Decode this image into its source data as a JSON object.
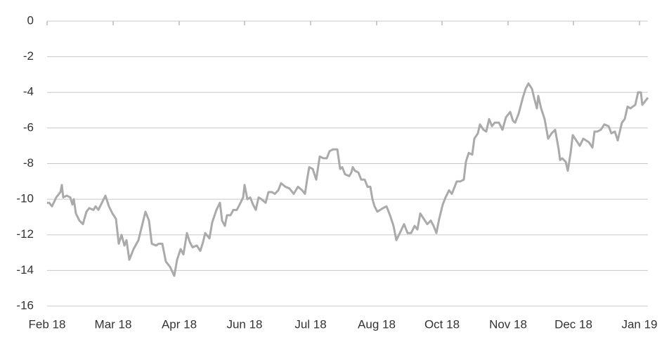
{
  "chart_data": {
    "type": "line",
    "x": [
      0,
      3,
      7,
      13,
      19,
      21,
      23,
      28,
      33,
      36,
      38,
      41,
      46,
      51,
      56,
      60,
      66,
      69,
      73,
      78,
      83,
      88,
      93,
      98,
      102,
      106,
      110,
      113,
      117,
      123,
      130,
      135,
      140,
      145,
      149,
      155,
      159,
      164,
      169,
      175,
      181,
      185,
      190,
      194,
      199,
      203,
      207,
      213,
      218,
      222,
      225,
      231,
      235,
      241,
      246,
      249,
      253,
      256,
      261,
      265,
      270,
      274,
      279,
      281,
      285,
      289,
      293,
      297,
      301,
      305,
      311,
      315,
      320,
      324,
      329,
      333,
      339,
      345,
      351,
      357,
      363,
      367,
      370,
      373,
      378,
      383,
      388,
      393,
      398,
      402,
      407,
      413,
      417,
      420,
      424,
      430,
      433,
      435,
      438,
      443,
      447,
      452,
      456,
      460,
      463,
      466,
      470,
      478,
      483,
      488,
      493,
      497,
      502,
      508,
      513,
      518,
      523,
      527,
      531,
      536,
      541,
      546,
      550,
      554,
      558,
      563,
      567,
      572,
      576,
      583,
      588,
      593,
      596,
      600,
      605,
      608,
      613,
      616,
      621,
      625,
      629,
      633,
      637,
      643,
      648,
      653,
      659,
      663,
      666,
      671,
      677,
      681,
      685,
      690,
      693,
      697,
      699,
      703,
      708,
      713,
      718,
      723,
      728,
      730,
      733,
      738,
      741,
      745,
      748,
      753,
      758,
      763,
      771,
      776,
      779,
      783,
      788,
      793,
      799,
      803,
      808,
      812,
      818,
      822,
      826,
      830,
      837,
      841,
      845,
      847,
      851,
      855
    ],
    "series": [
      {
        "color": "#aaaaaa",
        "values": [
          -10.2,
          -10.2,
          -10.4,
          -9.9,
          -9.6,
          -9.2,
          -9.9,
          -9.8,
          -9.9,
          -10.3,
          -10.0,
          -10.8,
          -11.2,
          -11.4,
          -10.7,
          -10.5,
          -10.6,
          -10.4,
          -10.6,
          -10.2,
          -9.8,
          -10.4,
          -10.8,
          -11.1,
          -12.5,
          -12.0,
          -12.6,
          -12.3,
          -13.4,
          -12.8,
          -12.3,
          -11.5,
          -10.7,
          -11.2,
          -12.5,
          -12.6,
          -12.5,
          -12.5,
          -13.5,
          -13.8,
          -14.3,
          -13.4,
          -12.8,
          -13.1,
          -11.9,
          -12.4,
          -12.7,
          -12.6,
          -12.9,
          -12.4,
          -11.9,
          -12.2,
          -11.3,
          -10.6,
          -10.2,
          -11.2,
          -11.5,
          -10.9,
          -10.9,
          -10.6,
          -10.6,
          -10.3,
          -9.9,
          -9.2,
          -10.0,
          -9.9,
          -10.3,
          -10.6,
          -9.9,
          -10.0,
          -10.2,
          -9.6,
          -9.6,
          -9.7,
          -9.5,
          -9.1,
          -9.3,
          -9.4,
          -9.7,
          -9.3,
          -9.5,
          -9.7,
          -8.9,
          -8.2,
          -8.3,
          -8.9,
          -7.6,
          -7.7,
          -7.7,
          -7.3,
          -7.2,
          -7.2,
          -8.3,
          -8.2,
          -8.6,
          -8.7,
          -8.5,
          -8.2,
          -8.4,
          -8.5,
          -8.9,
          -8.9,
          -9.3,
          -9.3,
          -10.0,
          -10.4,
          -10.7,
          -10.5,
          -10.4,
          -10.9,
          -11.5,
          -12.3,
          -11.9,
          -11.4,
          -11.9,
          -11.9,
          -11.5,
          -11.7,
          -10.8,
          -11.1,
          -11.4,
          -11.2,
          -11.5,
          -11.9,
          -11.1,
          -10.3,
          -9.9,
          -9.5,
          -9.7,
          -9.0,
          -9.0,
          -8.9,
          -7.9,
          -7.4,
          -7.5,
          -6.6,
          -6.3,
          -5.8,
          -6.1,
          -6.2,
          -5.5,
          -5.9,
          -5.7,
          -5.7,
          -6.1,
          -5.4,
          -5.1,
          -5.6,
          -5.7,
          -5.2,
          -4.3,
          -3.8,
          -3.5,
          -3.8,
          -4.3,
          -4.9,
          -4.2,
          -4.9,
          -5.5,
          -6.6,
          -6.3,
          -6.1,
          -7.2,
          -7.8,
          -7.7,
          -7.9,
          -8.4,
          -7.4,
          -6.4,
          -6.7,
          -7.0,
          -6.6,
          -6.8,
          -7.1,
          -6.2,
          -6.2,
          -6.1,
          -5.8,
          -5.9,
          -6.3,
          -6.2,
          -6.7,
          -5.7,
          -5.5,
          -4.8,
          -4.9,
          -4.7,
          -4.0,
          -4.0,
          -4.7,
          -4.5,
          -4.3
        ]
      }
    ],
    "xlim": [
      0,
      855
    ],
    "xticks": [
      {
        "value": 0,
        "label": "Feb 18"
      },
      {
        "value": 94,
        "label": "Mar 18"
      },
      {
        "value": 188,
        "label": "Apr 18"
      },
      {
        "value": 281,
        "label": "Jun 18"
      },
      {
        "value": 375,
        "label": "Jul 18"
      },
      {
        "value": 469,
        "label": "Aug 18"
      },
      {
        "value": 562,
        "label": "Oct 18"
      },
      {
        "value": 656,
        "label": "Nov 18"
      },
      {
        "value": 749,
        "label": "Dec 18"
      },
      {
        "value": 843,
        "label": "Jan 19"
      }
    ],
    "ylim": [
      -16,
      0
    ],
    "yticks": [
      0,
      -2,
      -4,
      -6,
      -8,
      -10,
      -12,
      -14,
      -16
    ],
    "grid": true
  }
}
